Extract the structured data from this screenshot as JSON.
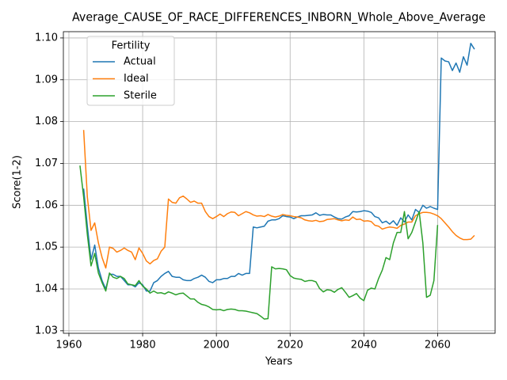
{
  "chart_data": {
    "type": "line",
    "title": "Average_CAUSE_OF_RACE_DIFFERENCES_INBORN_Whole_Above_Average",
    "xlabel": "Years",
    "ylabel": "Score(1-2)",
    "legend_title": "Fertility",
    "legend": "upper left",
    "grid": true,
    "x": [
      1963,
      1964,
      1965,
      1966,
      1967,
      1968,
      1969,
      1970,
      1971,
      1972,
      1973,
      1974,
      1975,
      1976,
      1977,
      1978,
      1979,
      1980,
      1981,
      1982,
      1983,
      1984,
      1985,
      1986,
      1987,
      1988,
      1989,
      1990,
      1991,
      1992,
      1993,
      1994,
      1995,
      1996,
      1997,
      1998,
      1999,
      2000,
      2001,
      2002,
      2003,
      2004,
      2005,
      2006,
      2007,
      2008,
      2009,
      2010,
      2011,
      2012,
      2013,
      2014,
      2015,
      2016,
      2017,
      2018,
      2019,
      2020,
      2021,
      2022,
      2023,
      2024,
      2025,
      2026,
      2027,
      2028,
      2029,
      2030,
      2031,
      2032,
      2033,
      2034,
      2035,
      2036,
      2037,
      2038,
      2039,
      2040,
      2041,
      2042,
      2043,
      2044,
      2045,
      2046,
      2047,
      2048,
      2049,
      2050,
      2051,
      2052,
      2053,
      2054,
      2055,
      2056,
      2057,
      2058,
      2059,
      2060,
      2061,
      2062,
      2063,
      2064,
      2065,
      2066,
      2067,
      2068,
      2069,
      2070
    ],
    "series": [
      {
        "name": "Actual",
        "color": "#1f77b4",
        "values": [
          null,
          1.064,
          1.055,
          1.047,
          1.0505,
          1.045,
          1.042,
          1.04,
          1.0435,
          1.0435,
          1.043,
          1.043,
          1.042,
          1.041,
          1.041,
          1.0405,
          1.0415,
          1.041,
          1.0395,
          1.0395,
          1.0415,
          1.042,
          1.043,
          1.0437,
          1.0442,
          1.043,
          1.0428,
          1.0428,
          1.0422,
          1.042,
          1.042,
          1.0425,
          1.0428,
          1.0433,
          1.0428,
          1.0418,
          1.0415,
          1.0422,
          1.0422,
          1.0425,
          1.0425,
          1.043,
          1.043,
          1.0437,
          1.0433,
          1.0437,
          1.0437,
          1.0548,
          1.0546,
          1.0548,
          1.055,
          1.0562,
          1.0565,
          1.0565,
          1.0568,
          1.0575,
          1.0573,
          1.0572,
          1.0568,
          1.0572,
          1.0575,
          1.0575,
          1.0576,
          1.0577,
          1.0582,
          1.0576,
          1.0578,
          1.0577,
          1.0577,
          1.0572,
          1.0568,
          1.0567,
          1.0572,
          1.0575,
          1.0585,
          1.0584,
          1.0585,
          1.0587,
          1.0586,
          1.0583,
          1.0573,
          1.057,
          1.0558,
          1.0562,
          1.0555,
          1.0563,
          1.0552,
          1.057,
          1.056,
          1.0577,
          1.0565,
          1.059,
          1.0583,
          1.06,
          1.0593,
          1.0597,
          1.0593,
          1.059,
          1.0952,
          1.0945,
          1.0943,
          1.0922,
          1.094,
          1.0918,
          1.0955,
          1.0935,
          1.0987,
          1.0973
        ]
      },
      {
        "name": "Ideal",
        "color": "#ff7f0e",
        "values": [
          null,
          1.078,
          1.062,
          1.054,
          1.0558,
          1.051,
          1.0475,
          1.045,
          1.05,
          1.0497,
          1.0488,
          1.0492,
          1.0498,
          1.0492,
          1.0488,
          1.047,
          1.0498,
          1.0485,
          1.0467,
          1.046,
          1.0468,
          1.0472,
          1.049,
          1.05,
          1.0615,
          1.0607,
          1.0605,
          1.0618,
          1.0622,
          1.0615,
          1.0607,
          1.061,
          1.0605,
          1.0605,
          1.0585,
          1.0573,
          1.0568,
          1.0573,
          1.0579,
          1.0573,
          1.058,
          1.0584,
          1.0583,
          1.0575,
          1.058,
          1.0585,
          1.0582,
          1.0577,
          1.0574,
          1.0575,
          1.0573,
          1.0578,
          1.0574,
          1.0572,
          1.0574,
          1.0578,
          1.0576,
          1.0575,
          1.0573,
          1.0572,
          1.057,
          1.0565,
          1.0563,
          1.0562,
          1.0564,
          1.0561,
          1.0562,
          1.0566,
          1.0567,
          1.0568,
          1.0565,
          1.0563,
          1.0565,
          1.0564,
          1.0572,
          1.0566,
          1.0567,
          1.0562,
          1.0563,
          1.0561,
          1.0552,
          1.055,
          1.0543,
          1.0546,
          1.0548,
          1.0547,
          1.0545,
          1.0552,
          1.0555,
          1.056,
          1.056,
          1.0575,
          1.058,
          1.0583,
          1.0583,
          1.0582,
          1.0579,
          1.0575,
          1.0568,
          1.0558,
          1.0548,
          1.0537,
          1.0528,
          1.0522,
          1.0518,
          1.0518,
          1.0519,
          1.0528
        ]
      },
      {
        "name": "Sterile",
        "color": "#2ca02c",
        "values": [
          1.0695,
          1.062,
          1.053,
          1.0455,
          1.0485,
          1.0438,
          1.0415,
          1.0395,
          1.0438,
          1.0428,
          1.0425,
          1.043,
          1.0425,
          1.0412,
          1.041,
          1.0408,
          1.042,
          1.0407,
          1.04,
          1.039,
          1.0395,
          1.039,
          1.0391,
          1.0388,
          1.0393,
          1.039,
          1.0386,
          1.0389,
          1.039,
          1.0383,
          1.0376,
          1.0376,
          1.0368,
          1.0363,
          1.0361,
          1.0357,
          1.0351,
          1.035,
          1.0351,
          1.0348,
          1.0351,
          1.0352,
          1.0351,
          1.0348,
          1.0348,
          1.0347,
          1.0345,
          1.0343,
          1.0341,
          1.0335,
          1.0328,
          1.0329,
          1.0453,
          1.0448,
          1.0449,
          1.0448,
          1.0446,
          1.0432,
          1.0426,
          1.0424,
          1.0423,
          1.0418,
          1.042,
          1.042,
          1.0417,
          1.0401,
          1.0393,
          1.0398,
          1.0397,
          1.0392,
          1.0399,
          1.0403,
          1.0392,
          1.038,
          1.0384,
          1.0389,
          1.0378,
          1.0372,
          1.0397,
          1.0402,
          1.04,
          1.0425,
          1.0445,
          1.0475,
          1.047,
          1.051,
          1.0535,
          1.0535,
          1.0585,
          1.052,
          1.0535,
          1.056,
          1.0585,
          1.051,
          1.038,
          1.0385,
          1.042,
          1.0553,
          null,
          null,
          null,
          null,
          null,
          null,
          null,
          null,
          null,
          null
        ]
      }
    ],
    "xlim": [
      1958.5,
      2075.6
    ],
    "xticks": [
      1960,
      1980,
      2000,
      2020,
      2040,
      2060
    ],
    "ylim": [
      1.0294,
      1.1015
    ],
    "yticks": [
      1.03,
      1.04,
      1.05,
      1.06,
      1.07,
      1.08,
      1.09,
      {
        "value": 1.1,
        "label": "1.10"
      }
    ]
  }
}
